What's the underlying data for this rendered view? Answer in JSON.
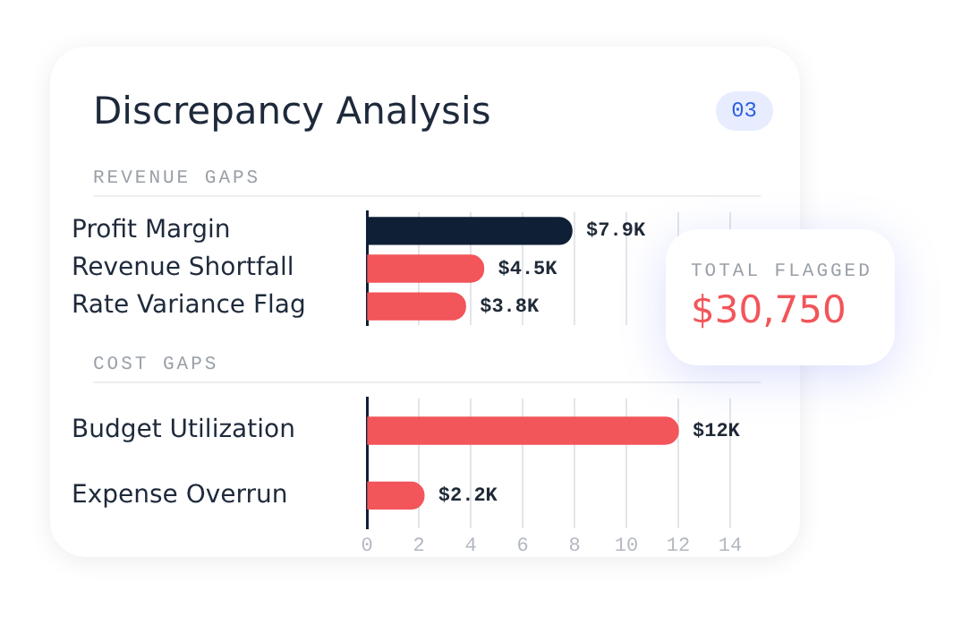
{
  "chart_data": [
    {
      "type": "bar",
      "title": "Discrepancy Analysis",
      "subtitle": "REVENUE GAPS",
      "annotations": [
        "03"
      ],
      "orientation": "horizontal",
      "categories": [
        "Profit Margin",
        "Revenue Shortfall",
        "Rate Variance Flag"
      ],
      "values": [
        7.9,
        4.5,
        3.8
      ],
      "value_labels": [
        "$7.9K",
        "$4.5K",
        "$3.8K"
      ],
      "colors": [
        "#0f1f35",
        "#f2555a",
        "#f2555a"
      ],
      "xlim": [
        0,
        14
      ],
      "xticks": [
        0,
        2,
        4,
        6,
        8,
        10,
        12,
        14
      ],
      "grid": "x",
      "tick_labels": "y"
    },
    {
      "type": "bar",
      "subtitle": "COST GAPS",
      "orientation": "horizontal",
      "categories": [
        "Budget Utilization",
        "Expense Overrun"
      ],
      "values": [
        12,
        2.2
      ],
      "value_labels": [
        "$12K",
        "$2.2K"
      ],
      "colors": [
        "#f2555a",
        "#f2555a"
      ],
      "xlim": [
        0,
        14
      ],
      "xticks": [
        0,
        2,
        4,
        6,
        8,
        10,
        12,
        14
      ],
      "grid": "x"
    },
    {
      "type": "other",
      "title": "TOTAL FLAGGED",
      "annotations": [
        "$30,750"
      ]
    }
  ]
}
